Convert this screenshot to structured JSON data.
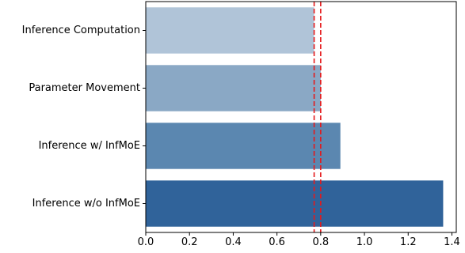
{
  "chart_data": {
    "type": "bar",
    "orientation": "horizontal",
    "title": "",
    "xlabel": "",
    "ylabel": "",
    "categories": [
      "Inference Computation",
      "Parameter Movement",
      "Inference w/ InfMoE",
      "Inference w/o InfMoE"
    ],
    "values": [
      0.77,
      0.8,
      0.89,
      1.36
    ],
    "bar_colors": [
      "#b0c4d8",
      "#8aa8c5",
      "#5b87b0",
      "#30639a"
    ],
    "xlim": [
      0,
      1.42
    ],
    "xticks": [
      0.0,
      0.2,
      0.4,
      0.6,
      0.8,
      1.0,
      1.2,
      1.4
    ],
    "xtick_labels": [
      "0.0",
      "0.2",
      "0.4",
      "0.6",
      "0.8",
      "1.0",
      "1.2",
      "1.4"
    ],
    "reference_lines": [
      {
        "x": 0.77,
        "color": "#e41a1c",
        "style": "dashed",
        "orientation": "vertical"
      },
      {
        "x": 0.8,
        "color": "#e41a1c",
        "style": "dashed",
        "orientation": "vertical"
      }
    ],
    "grid": false,
    "legend": "none"
  }
}
